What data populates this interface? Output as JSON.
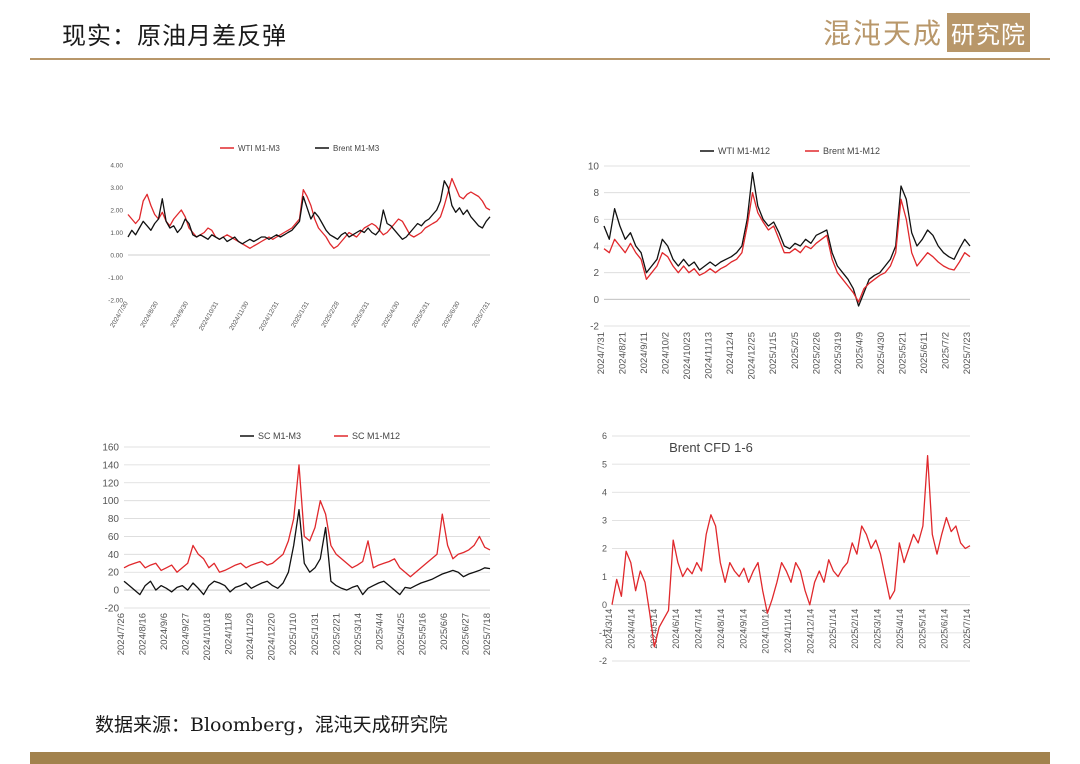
{
  "header": {
    "title": "现实：原油月差反弹",
    "logo_text": "混沌天成",
    "logo_box_text": "研究院"
  },
  "source": "数据来源：Bloomberg，混沌天成研究院",
  "colors": {
    "accent": "#b8976a",
    "footer": "#a2824d",
    "red": "#e0282c",
    "black": "#111111"
  },
  "chart_data": [
    {
      "id": "wti-brent-m1m3",
      "type": "line",
      "title": "",
      "yticks": [
        "4.00",
        "3.00",
        "2.00",
        "1.00",
        "0.00",
        "-1.00",
        "-2.00"
      ],
      "ylim": [
        -2,
        4
      ],
      "xticks": [
        "2024/7/30",
        "2024/8/30",
        "2024/9/30",
        "2024/10/31",
        "2024/11/30",
        "2024/12/31",
        "2025/1/31",
        "2025/2/28",
        "2025/3/31",
        "2025/4/30",
        "2025/5/31",
        "2025/6/30",
        "2025/7/31"
      ],
      "series": [
        {
          "name": "WTI M1-M3",
          "color": "#e0282c",
          "values": [
            1.8,
            1.6,
            1.4,
            1.6,
            2.4,
            2.7,
            2.2,
            1.8,
            1.6,
            1.9,
            1.5,
            1.3,
            1.6,
            1.8,
            2.0,
            1.7,
            1.2,
            1.0,
            0.8,
            0.9,
            1.0,
            1.2,
            1.1,
            0.8,
            0.7,
            0.8,
            0.9,
            0.8,
            0.7,
            0.6,
            0.5,
            0.4,
            0.3,
            0.4,
            0.5,
            0.6,
            0.7,
            0.8,
            0.7,
            0.8,
            0.9,
            1.0,
            1.1,
            1.2,
            1.4,
            1.6,
            2.9,
            2.6,
            2.2,
            1.6,
            1.2,
            1.0,
            0.8,
            0.5,
            0.3,
            0.4,
            0.6,
            0.8,
            1.0,
            0.9,
            0.8,
            1.0,
            1.2,
            1.3,
            1.4,
            1.3,
            1.1,
            0.9,
            1.0,
            1.2,
            1.4,
            1.6,
            1.5,
            1.2,
            0.9,
            0.8,
            0.9,
            1.0,
            1.2,
            1.3,
            1.4,
            1.5,
            1.7,
            2.2,
            2.8,
            3.4,
            3.0,
            2.6,
            2.5,
            2.7,
            2.8,
            2.7,
            2.6,
            2.4,
            2.1,
            2.0
          ]
        },
        {
          "name": "Brent M1-M3",
          "color": "#111111",
          "values": [
            0.8,
            1.1,
            0.9,
            1.2,
            1.5,
            1.3,
            1.1,
            1.4,
            1.6,
            2.5,
            1.5,
            1.2,
            1.3,
            1.0,
            1.2,
            1.6,
            1.4,
            0.9,
            0.8,
            0.9,
            0.8,
            0.7,
            0.9,
            0.8,
            0.7,
            0.8,
            0.6,
            0.7,
            0.8,
            0.6,
            0.5,
            0.6,
            0.7,
            0.6,
            0.7,
            0.8,
            0.8,
            0.7,
            0.8,
            0.9,
            0.8,
            0.9,
            1.0,
            1.1,
            1.3,
            1.5,
            2.6,
            2.1,
            1.6,
            1.9,
            1.7,
            1.4,
            1.1,
            0.9,
            0.8,
            0.7,
            0.9,
            1.0,
            0.8,
            0.9,
            1.0,
            1.1,
            1.0,
            1.2,
            1.0,
            0.9,
            1.1,
            2.0,
            1.4,
            1.3,
            1.1,
            0.9,
            0.7,
            0.8,
            1.0,
            1.2,
            1.4,
            1.3,
            1.5,
            1.6,
            1.8,
            2.0,
            2.4,
            3.3,
            3.0,
            2.2,
            1.9,
            2.1,
            1.8,
            2.0,
            1.7,
            1.5,
            1.3,
            1.2,
            1.5,
            1.7
          ]
        }
      ]
    },
    {
      "id": "wti-brent-m1m12",
      "type": "line",
      "title": "",
      "yticks": [
        "10",
        "8",
        "6",
        "4",
        "2",
        "0",
        "-2"
      ],
      "ylim": [
        -2,
        10
      ],
      "xticks": [
        "2024/7/31",
        "2024/8/21",
        "2024/9/11",
        "2024/10/2",
        "2024/10/23",
        "2024/11/13",
        "2024/12/4",
        "2024/12/25",
        "2025/1/15",
        "2025/2/5",
        "2025/2/26",
        "2025/3/19",
        "2025/4/9",
        "2025/4/30",
        "2025/5/21",
        "2025/6/11",
        "2025/7/2",
        "2025/7/23"
      ],
      "series": [
        {
          "name": "WTI M1-M12",
          "color": "#111111",
          "values": [
            5.5,
            4.5,
            6.8,
            5.5,
            4.5,
            5.0,
            4.0,
            3.5,
            2.0,
            2.5,
            3.0,
            4.5,
            4.0,
            3.0,
            2.5,
            3.0,
            2.5,
            2.8,
            2.2,
            2.5,
            2.8,
            2.5,
            2.8,
            3.0,
            3.2,
            3.5,
            4.0,
            6.0,
            9.5,
            7.0,
            6.0,
            5.5,
            5.8,
            5.0,
            4.0,
            3.8,
            4.2,
            4.0,
            4.5,
            4.2,
            4.8,
            5.0,
            5.2,
            3.5,
            2.5,
            2.0,
            1.5,
            0.8,
            -0.5,
            0.5,
            1.5,
            1.8,
            2.0,
            2.5,
            3.0,
            4.0,
            8.5,
            7.5,
            5.0,
            4.0,
            4.5,
            5.2,
            4.8,
            4.0,
            3.5,
            3.2,
            3.0,
            3.8,
            4.5,
            4.0
          ]
        },
        {
          "name": "Brent M1-M12",
          "color": "#e0282c",
          "values": [
            3.8,
            3.5,
            4.5,
            4.0,
            3.5,
            4.2,
            3.5,
            3.0,
            1.5,
            2.0,
            2.5,
            3.5,
            3.2,
            2.5,
            2.0,
            2.5,
            2.0,
            2.3,
            1.8,
            2.0,
            2.3,
            2.0,
            2.3,
            2.5,
            2.8,
            3.0,
            3.5,
            5.5,
            8.0,
            6.5,
            5.8,
            5.2,
            5.5,
            4.5,
            3.5,
            3.5,
            3.8,
            3.5,
            4.0,
            3.8,
            4.2,
            4.5,
            4.8,
            3.0,
            2.0,
            1.5,
            1.0,
            0.5,
            -0.2,
            0.8,
            1.2,
            1.5,
            1.8,
            2.0,
            2.5,
            3.5,
            7.5,
            6.0,
            3.5,
            2.5,
            3.0,
            3.5,
            3.2,
            2.8,
            2.5,
            2.3,
            2.2,
            2.8,
            3.5,
            3.2
          ]
        }
      ]
    },
    {
      "id": "sc-spreads",
      "type": "line",
      "title": "",
      "yticks": [
        "160",
        "140",
        "120",
        "100",
        "80",
        "60",
        "40",
        "20",
        "0",
        "-20"
      ],
      "ylim": [
        -20,
        160
      ],
      "xticks": [
        "2024/7/26",
        "2024/8/16",
        "2024/9/6",
        "2024/9/27",
        "2024/10/18",
        "2024/11/8",
        "2024/11/29",
        "2024/12/20",
        "2025/1/10",
        "2025/1/31",
        "2025/2/21",
        "2025/3/14",
        "2025/4/4",
        "2025/4/25",
        "2025/5/16",
        "2025/6/6",
        "2025/6/27",
        "2025/7/18"
      ],
      "series": [
        {
          "name": "SC M1-M3",
          "color": "#111111",
          "values": [
            10,
            5,
            0,
            -5,
            5,
            10,
            0,
            5,
            2,
            -2,
            3,
            5,
            0,
            8,
            2,
            -5,
            5,
            10,
            8,
            5,
            -2,
            3,
            5,
            8,
            2,
            5,
            8,
            10,
            5,
            2,
            8,
            20,
            50,
            90,
            30,
            20,
            25,
            35,
            70,
            10,
            5,
            2,
            0,
            3,
            5,
            -5,
            2,
            5,
            8,
            10,
            5,
            0,
            -5,
            3,
            2,
            5,
            8,
            10,
            12,
            15,
            18,
            20,
            22,
            20,
            15,
            18,
            20,
            22,
            25,
            24
          ]
        },
        {
          "name": "SC M1-M12",
          "color": "#e0282c",
          "values": [
            25,
            28,
            30,
            32,
            25,
            28,
            30,
            22,
            25,
            28,
            20,
            25,
            30,
            50,
            40,
            35,
            25,
            30,
            20,
            22,
            25,
            28,
            30,
            25,
            28,
            30,
            32,
            28,
            30,
            35,
            40,
            55,
            80,
            140,
            60,
            55,
            70,
            100,
            85,
            50,
            40,
            35,
            30,
            25,
            28,
            32,
            55,
            25,
            28,
            30,
            32,
            35,
            25,
            20,
            15,
            20,
            25,
            30,
            35,
            40,
            85,
            50,
            35,
            40,
            42,
            45,
            50,
            60,
            48,
            45
          ]
        }
      ]
    },
    {
      "id": "brent-cfd-1-6",
      "type": "line",
      "title": "Brent CFD 1-6",
      "yticks": [
        "6",
        "5",
        "4",
        "3",
        "2",
        "1",
        "0",
        "-1",
        "-2"
      ],
      "ylim": [
        -2,
        6
      ],
      "xticks": [
        "2024/3/14",
        "2024/4/14",
        "2024/5/14",
        "2024/6/14",
        "2024/7/14",
        "2024/8/14",
        "2024/9/14",
        "2024/10/14",
        "2024/11/14",
        "2024/12/14",
        "2025/1/14",
        "2025/2/14",
        "2025/3/14",
        "2025/4/14",
        "2025/5/14",
        "2025/6/14",
        "2025/7/14"
      ],
      "series": [
        {
          "name": "Brent CFD 1-6",
          "color": "#e0282c",
          "values": [
            0.0,
            0.9,
            0.3,
            1.9,
            1.5,
            0.5,
            1.2,
            0.8,
            -0.3,
            -1.5,
            -0.8,
            -0.5,
            -0.2,
            2.3,
            1.5,
            1.0,
            1.3,
            1.1,
            1.5,
            1.2,
            2.5,
            3.2,
            2.8,
            1.5,
            0.8,
            1.5,
            1.2,
            1.0,
            1.3,
            0.8,
            1.2,
            1.5,
            0.5,
            -0.3,
            0.2,
            0.8,
            1.5,
            1.2,
            0.8,
            1.5,
            1.2,
            0.5,
            0.0,
            0.8,
            1.2,
            0.8,
            1.6,
            1.2,
            1.0,
            1.3,
            1.5,
            2.2,
            1.8,
            2.8,
            2.5,
            2.0,
            2.3,
            1.8,
            1.0,
            0.2,
            0.5,
            2.2,
            1.5,
            2.0,
            2.5,
            2.2,
            2.8,
            5.3,
            2.5,
            1.8,
            2.5,
            3.1,
            2.6,
            2.8,
            2.2,
            2.0,
            2.1
          ]
        }
      ]
    }
  ]
}
